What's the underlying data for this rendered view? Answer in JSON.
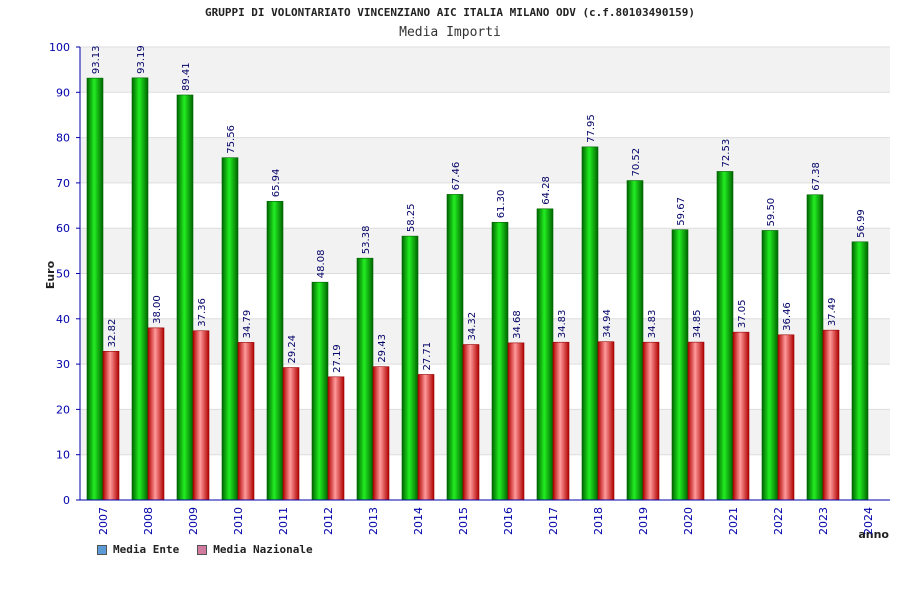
{
  "chart_data": {
    "type": "bar",
    "title": "GRUPPI DI VOLONTARIATO VINCENZIANO AIC ITALIA MILANO ODV (c.f.80103490159)",
    "subtitle": "Media Importi",
    "xlabel": "anno",
    "ylabel": "Euro",
    "ylim": [
      0,
      100
    ],
    "yticks": [
      "0",
      "10",
      "20",
      "30",
      "40",
      "50",
      "60",
      "70",
      "80",
      "90",
      "100"
    ],
    "categories": [
      "2007",
      "2008",
      "2009",
      "2010",
      "2011",
      "2012",
      "2013",
      "2014",
      "2015",
      "2016",
      "2017",
      "2018",
      "2019",
      "2020",
      "2021",
      "2022",
      "2023",
      "2024"
    ],
    "series": [
      {
        "name": "Media Ente",
        "legend_color": "#5b9bd5",
        "bar_color": "#00b400",
        "values": [
          93.13,
          93.19,
          89.41,
          75.56,
          65.94,
          48.08,
          53.38,
          58.25,
          67.46,
          61.3,
          64.28,
          77.95,
          70.52,
          59.67,
          72.53,
          59.5,
          67.38,
          56.99
        ],
        "labels": [
          "93.13",
          "93.19",
          "89.41",
          "75.56",
          "65.94",
          "48.08",
          "53.38",
          "58.25",
          "67.46",
          "61.30",
          "64.28",
          "77.95",
          "70.52",
          "59.67",
          "72.53",
          "59.50",
          "67.38",
          "56.99"
        ]
      },
      {
        "name": "Media Nazionale",
        "legend_color": "#d07aa0",
        "bar_color": "#e00000",
        "values": [
          32.82,
          38.0,
          37.36,
          34.79,
          29.24,
          27.19,
          29.43,
          27.71,
          34.32,
          34.68,
          34.83,
          34.94,
          34.83,
          34.85,
          37.05,
          36.46,
          37.49,
          null
        ],
        "labels": [
          "32.82",
          "38.00",
          "37.36",
          "34.79",
          "29.24",
          "27.19",
          "29.43",
          "27.71",
          "34.32",
          "34.68",
          "34.83",
          "34.94",
          "34.83",
          "34.85",
          "37.05",
          "36.46",
          "37.49",
          null
        ]
      }
    ],
    "grid": true,
    "legend_position": "bottom-left"
  }
}
